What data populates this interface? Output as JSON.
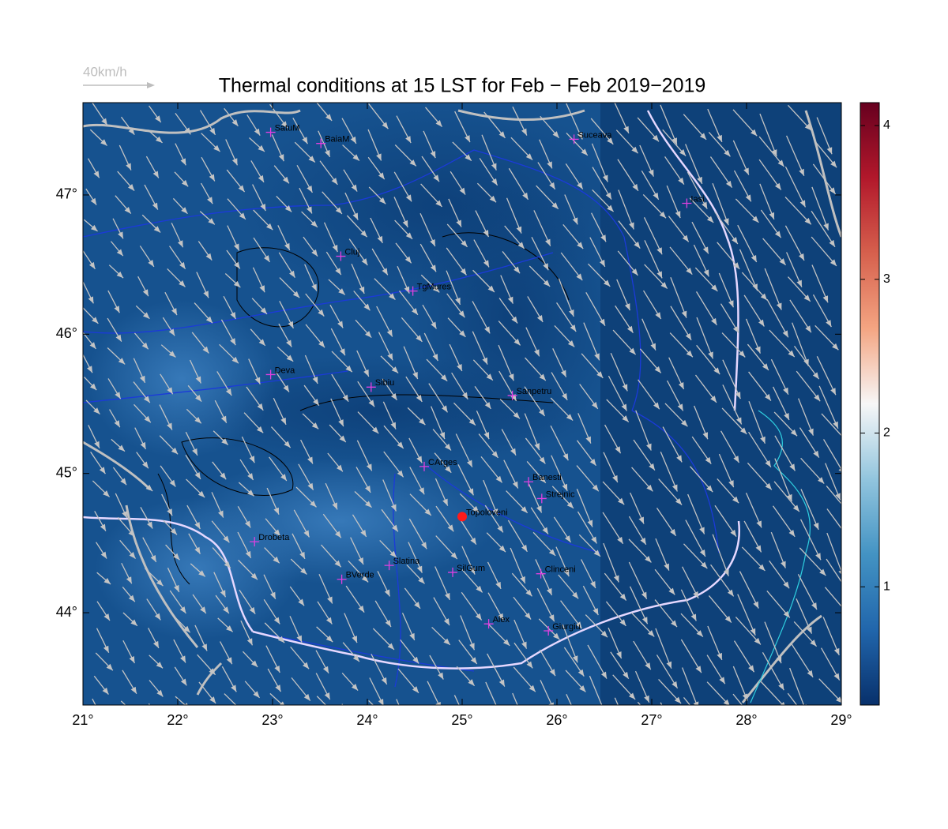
{
  "title": "Thermal conditions at 15 LST for Feb − Feb  2019−2019",
  "wind_legend": "40km/h",
  "map": {
    "xlim": [
      21,
      29
    ],
    "ylim": [
      43.337,
      47.663
    ],
    "xticks": [
      {
        "value": 21,
        "label": "21°"
      },
      {
        "value": 22,
        "label": "22°"
      },
      {
        "value": 23,
        "label": "23°"
      },
      {
        "value": 24,
        "label": "24°"
      },
      {
        "value": 25,
        "label": "25°"
      },
      {
        "value": 26,
        "label": "26°"
      },
      {
        "value": 27,
        "label": "27°"
      },
      {
        "value": 28,
        "label": "28°"
      },
      {
        "value": 29,
        "label": "29°"
      }
    ],
    "yticks": [
      {
        "value": 44,
        "label": "44°"
      },
      {
        "value": 45,
        "label": "45°"
      },
      {
        "value": 46,
        "label": "46°"
      },
      {
        "value": 47,
        "label": "47°"
      }
    ]
  },
  "colorbar": {
    "lim": [
      0.231,
      4.149
    ],
    "ticks": [
      1,
      2,
      3,
      4
    ],
    "colors": [
      "#08306b",
      "#2166ac",
      "#4393c3",
      "#92c5de",
      "#f7f7f7",
      "#f4a582",
      "#d6604d",
      "#b2182b",
      "#67001f"
    ]
  },
  "cities": [
    {
      "name": "SatuM",
      "lon": 22.98,
      "lat": 47.45
    },
    {
      "name": "BaiaM",
      "lon": 23.51,
      "lat": 47.37
    },
    {
      "name": "Suceava",
      "lon": 26.18,
      "lat": 47.4
    },
    {
      "name": "Iasi",
      "lon": 27.37,
      "lat": 46.94
    },
    {
      "name": "Cluj",
      "lon": 23.72,
      "lat": 46.56
    },
    {
      "name": "TgMures",
      "lon": 24.48,
      "lat": 46.31
    },
    {
      "name": "Deva",
      "lon": 22.98,
      "lat": 45.71
    },
    {
      "name": "Sibiu",
      "lon": 24.04,
      "lat": 45.62
    },
    {
      "name": "Sanpetru",
      "lon": 25.53,
      "lat": 45.56
    },
    {
      "name": "CArges",
      "lon": 24.6,
      "lat": 45.05
    },
    {
      "name": "Banesti",
      "lon": 25.7,
      "lat": 44.94
    },
    {
      "name": "Strejnic",
      "lon": 25.84,
      "lat": 44.82
    },
    {
      "name": "Topoloveni",
      "lon": 25.0,
      "lat": 44.69,
      "marker": "dot"
    },
    {
      "name": "Drobeta",
      "lon": 22.81,
      "lat": 44.51
    },
    {
      "name": "Slatina",
      "lon": 24.23,
      "lat": 44.34
    },
    {
      "name": "SilGum",
      "lon": 24.9,
      "lat": 44.29
    },
    {
      "name": "BVerde",
      "lon": 23.73,
      "lat": 44.24
    },
    {
      "name": "Clinceni",
      "lon": 25.83,
      "lat": 44.28
    },
    {
      "name": "Alex",
      "lon": 25.28,
      "lat": 43.92
    },
    {
      "name": "Giurgiu",
      "lon": 25.91,
      "lat": 43.87
    }
  ]
}
